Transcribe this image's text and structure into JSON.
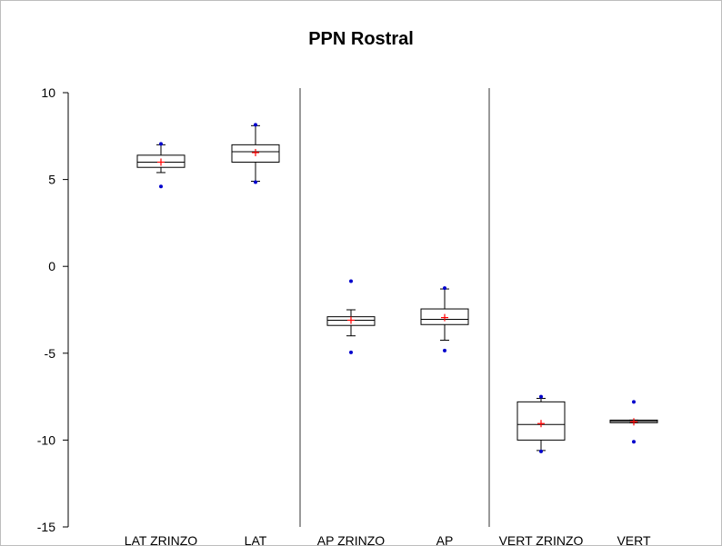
{
  "chart_data": {
    "type": "boxplot",
    "title": "PPN Rostral",
    "xlabel": "",
    "ylabel": "",
    "ylim": [
      -15,
      10
    ],
    "yticks": [
      10,
      5,
      0,
      -5,
      -10,
      -15
    ],
    "grid": false,
    "legend": "none",
    "categories": [
      "LAT ZRINZO",
      "LAT",
      "AP ZRINZO",
      "AP",
      "VERT ZRINZO",
      "VERT"
    ],
    "boxes": [
      {
        "category": "LAT ZRINZO",
        "min": 5.4,
        "q1": 5.7,
        "median": 6.0,
        "q3": 6.4,
        "max": 7.0,
        "mean": 6.0,
        "outliers": [
          4.6,
          7.05
        ]
      },
      {
        "category": "LAT",
        "min": 4.9,
        "q1": 6.0,
        "median": 6.6,
        "q3": 7.0,
        "max": 8.1,
        "mean": 6.55,
        "outliers": [
          4.85,
          8.15
        ]
      },
      {
        "category": "AP ZRINZO",
        "min": -4.0,
        "q1": -3.4,
        "median": -3.1,
        "q3": -2.9,
        "max": -2.5,
        "mean": -3.1,
        "outliers": [
          -0.85,
          -4.95
        ]
      },
      {
        "category": "AP",
        "min": -4.25,
        "q1": -3.35,
        "median": -3.05,
        "q3": -2.45,
        "max": -1.3,
        "mean": -2.95,
        "outliers": [
          -1.25,
          -4.85
        ]
      },
      {
        "category": "VERT ZRINZO",
        "min": -10.6,
        "q1": -10.0,
        "median": -9.1,
        "q3": -7.8,
        "max": -7.6,
        "mean": -9.05,
        "outliers": [
          -10.65,
          -7.5
        ]
      },
      {
        "category": "VERT",
        "min": -9.0,
        "q1": -9.0,
        "median": -8.92,
        "q3": -8.85,
        "max": -8.85,
        "mean": -8.95,
        "outliers": [
          -7.8,
          -10.1
        ]
      }
    ],
    "separators_after": [
      "LAT",
      "AP"
    ],
    "colors": {
      "box": "#000000",
      "mean_marker": "#ff0000",
      "outlier": "#0000cc",
      "axis": "#000000"
    }
  }
}
